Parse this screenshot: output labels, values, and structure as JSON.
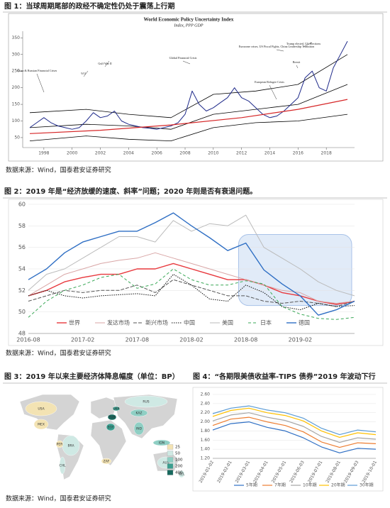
{
  "captions": [
    "图 1：当球周期尾部的政经不确定性仍处于震荡上行期",
    "图 2：2019 年是“经济放缓的速度、斜率”问题；2020 年则是否有衰退问题。",
    "图 3：2019 年以来主要经济体降息幅度（单位：BP）",
    "图 4：“各期限美债收益率-TIPS 债券”2019 年波动下行"
  ],
  "sources": [
    "数据来源：Wind，国泰君安证券研究",
    "数据来源：Wind，国泰君安证券研究",
    "数据来源：Wind，国泰君安证券研究"
  ],
  "chart_data": [
    {
      "type": "line",
      "title": "World Economic Policy Uncertainty Index",
      "subtitle": "Index, PPP GDP",
      "xlim": [
        1996.5,
        2020
      ],
      "ylim": [
        20,
        370
      ],
      "xticks": [
        1998,
        2000,
        2002,
        2004,
        2006,
        2008,
        2010,
        2012,
        2014,
        2016,
        2018
      ],
      "yticks": [
        50,
        100,
        150,
        200,
        250,
        300,
        350
      ],
      "annotations": [
        "Asian & Russian Financial Crises",
        "9/11",
        "Gulf War II",
        "Global Financial Crisis",
        "European Refugee Crisis",
        "Brexit",
        "Eurozone crises, US Fiscal Fights, China Leadership Transition",
        "Trump elected, US Elections"
      ],
      "series": [
        {
          "color": "#000000",
          "width": 0.8,
          "x": [
            1997,
            2001,
            2004,
            2007,
            2010,
            2013,
            2016,
            2019.5
          ],
          "values": [
            125,
            135,
            120,
            110,
            180,
            190,
            210,
            300
          ]
        },
        {
          "color": "#000000",
          "width": 0.8,
          "x": [
            1997,
            2001,
            2004,
            2007,
            2010,
            2013,
            2016,
            2019.5
          ],
          "values": [
            40,
            55,
            45,
            40,
            80,
            95,
            100,
            120
          ]
        },
        {
          "color": "#000000",
          "width": 0.8,
          "x": [
            1997,
            2001,
            2004,
            2007,
            2010,
            2013,
            2016,
            2019.5
          ],
          "values": [
            80,
            90,
            85,
            75,
            120,
            135,
            150,
            210
          ]
        },
        {
          "color": "#1f2a8a",
          "width": 1,
          "x": [
            1997,
            1997.5,
            1998,
            1998.5,
            1999,
            1999.5,
            2000,
            2000.5,
            2001,
            2001.5,
            2002,
            2002.5,
            2003,
            2003.5,
            2004,
            2004.5,
            2005,
            2005.5,
            2006,
            2006.5,
            2007,
            2007.5,
            2008,
            2008.5,
            2009,
            2009.5,
            2010,
            2010.5,
            2011,
            2011.5,
            2012,
            2012.5,
            2013,
            2013.5,
            2014,
            2014.5,
            2015,
            2015.5,
            2016,
            2016.5,
            2017,
            2017.5,
            2018,
            2018.5,
            2019,
            2019.5
          ],
          "values": [
            80,
            95,
            110,
            95,
            85,
            80,
            75,
            80,
            100,
            125,
            110,
            115,
            130,
            100,
            90,
            85,
            80,
            78,
            75,
            80,
            85,
            95,
            120,
            190,
            150,
            130,
            140,
            155,
            170,
            200,
            170,
            160,
            140,
            120,
            110,
            115,
            130,
            150,
            170,
            230,
            250,
            200,
            190,
            260,
            300,
            340
          ]
        },
        {
          "color": "#d62728",
          "width": 1.2,
          "x": [
            1997,
            2002,
            2007,
            2012,
            2016,
            2019.5
          ],
          "values": [
            62,
            72,
            88,
            110,
            135,
            165
          ]
        }
      ]
    },
    {
      "type": "line",
      "ylim": [
        48,
        60
      ],
      "yticks": [
        48,
        50,
        52,
        54,
        56,
        58,
        60
      ],
      "categories": [
        "2016-08",
        null,
        null,
        "2017-02",
        null,
        null,
        "2017-08",
        null,
        null,
        "2018-02",
        null,
        null,
        "2018-08",
        null,
        null,
        "2019-02",
        null,
        null,
        null
      ],
      "series": [
        {
          "name": "世界",
          "color": "#e8383d",
          "width": 1.4,
          "values": [
            51.5,
            52,
            52.8,
            53.2,
            53.5,
            53.5,
            54,
            54,
            54.5,
            54,
            53.5,
            53,
            53,
            52.5,
            51.8,
            51.5,
            51,
            50.7,
            51
          ]
        },
        {
          "name": "发达市场",
          "color": "#d9a6a6",
          "width": 1,
          "values": [
            51.5,
            52.5,
            53.5,
            54,
            54.5,
            54.8,
            55,
            55.5,
            55,
            54.5,
            54,
            53.5,
            53,
            52.5,
            52,
            51.8,
            51,
            50.8,
            51
          ]
        },
        {
          "name": "新兴市场",
          "color": "#555555",
          "width": 1,
          "dash": "5,2",
          "values": [
            51,
            51.5,
            52,
            51.8,
            52,
            52,
            52.5,
            51.8,
            53,
            52.5,
            52,
            51.5,
            51.5,
            51,
            50.8,
            51,
            50.8,
            50.5,
            51
          ]
        },
        {
          "name": "中国",
          "color": "#111111",
          "width": 1,
          "dash": "1.5,1.5",
          "values": [
            51.5,
            52,
            51.5,
            51.3,
            51.5,
            51.6,
            51.7,
            51.5,
            53.5,
            52.5,
            51.2,
            51,
            52.5,
            51.8,
            50.5,
            50.2,
            50.8,
            50.5,
            50.6
          ]
        },
        {
          "name": "美国",
          "color": "#bbbbbb",
          "width": 1,
          "values": [
            52,
            53.5,
            54,
            55,
            56,
            57,
            57,
            56.5,
            58.5,
            57.5,
            58.2,
            58,
            59,
            56,
            55,
            54,
            52.8,
            52,
            51.5
          ]
        },
        {
          "name": "日本",
          "color": "#3aa857",
          "width": 1,
          "dash": "4,3",
          "values": [
            49.5,
            51,
            52,
            52.5,
            53.2,
            53.5,
            52.2,
            52.6,
            54,
            53,
            52.5,
            52.5,
            52.9,
            52.6,
            50.5,
            49.8,
            49.4,
            49.3,
            49.5
          ]
        },
        {
          "name": "德国",
          "color": "#2f6fc4",
          "width": 1.4,
          "values": [
            53,
            54,
            55.5,
            56.5,
            57,
            57.5,
            57.5,
            58.3,
            59.2,
            58,
            56.9,
            55.7,
            56.4,
            53.9,
            52.6,
            51.5,
            49.7,
            50.2,
            51
          ]
        }
      ]
    },
    {
      "type": "line",
      "ylim": [
        1.2,
        2.6
      ],
      "yticks": [
        {
          "value": 1.2,
          "label": "1.20"
        },
        {
          "value": 1.4,
          "label": "1.40"
        },
        {
          "value": 1.6,
          "label": "1.60"
        },
        {
          "value": 1.8,
          "label": "1.80"
        },
        {
          "value": 2,
          "label": "2.00"
        },
        {
          "value": 2.2,
          "label": "2.20"
        },
        {
          "value": 2.4,
          "label": "2.40"
        },
        {
          "value": 2.6,
          "label": "2.60"
        }
      ],
      "categories": [
        "2019-01-02",
        "2019-02-01",
        "2019-03-01",
        "2019-04-01",
        "2019-05-01",
        "2019-06-03",
        "2019-07-01",
        "2019-08-01",
        "2019-09-03",
        "2019-10-01"
      ],
      "series": [
        {
          "name": "5年期",
          "color": "#2f6fc4",
          "width": 1.2,
          "values": [
            1.82,
            1.96,
            2,
            1.88,
            1.8,
            1.65,
            1.45,
            1.32,
            1.42,
            1.4
          ]
        },
        {
          "name": "7年期",
          "color": "#ed7d31",
          "width": 1.2,
          "values": [
            1.92,
            2.06,
            2.1,
            2,
            1.92,
            1.78,
            1.56,
            1.44,
            1.54,
            1.52
          ]
        },
        {
          "name": "10年期",
          "color": "#a5a5a5",
          "width": 1.2,
          "values": [
            2.02,
            2.15,
            2.2,
            2.1,
            2.03,
            1.9,
            1.68,
            1.55,
            1.65,
            1.62
          ]
        },
        {
          "name": "20年期",
          "color": "#ffc000",
          "width": 1.2,
          "values": [
            2.12,
            2.25,
            2.3,
            2.2,
            2.14,
            2.02,
            1.8,
            1.66,
            1.76,
            1.72
          ]
        },
        {
          "name": "30年期",
          "color": "#5b9bd5",
          "width": 1.2,
          "values": [
            2.18,
            2.3,
            2.35,
            2.26,
            2.2,
            2.08,
            1.86,
            1.72,
            1.82,
            1.78
          ]
        }
      ]
    }
  ],
  "map": {
    "type": "map",
    "legend": [
      {
        "value": 25,
        "color": "#f3e3b3"
      },
      {
        "value": 50,
        "color": "#cfe9e4"
      },
      {
        "value": 100,
        "color": "#8fcfc4"
      },
      {
        "value": 200,
        "color": "#3a9e8f"
      },
      {
        "value": 400,
        "color": "#17695e"
      }
    ],
    "regions": [
      {
        "label": "USA",
        "color": "#f3e3b3"
      },
      {
        "label": "MEX",
        "color": "#f3e3b3"
      },
      {
        "label": "BRA",
        "color": "#cfe9e4"
      },
      {
        "label": "CHL",
        "color": "#cfe9e4"
      },
      {
        "label": "PER",
        "color": "#f3e3b3"
      },
      {
        "label": "RUS",
        "color": "#cfe9e4"
      },
      {
        "label": "KAZ",
        "color": "#8fcfc4"
      },
      {
        "label": "TUR",
        "color": "#17695e"
      },
      {
        "label": "EGY",
        "color": "#3a9e8f"
      },
      {
        "label": "IND",
        "color": "#8fcfc4"
      },
      {
        "label": "IDN",
        "color": "#8fcfc4"
      },
      {
        "label": "AUS",
        "color": "#cfe9e4"
      },
      {
        "label": "NZL",
        "color": "#cfe9e4"
      },
      {
        "label": "ZAF",
        "color": "#f3e3b3"
      },
      {
        "label": "UKR",
        "color": "#3a9e8f"
      }
    ]
  }
}
